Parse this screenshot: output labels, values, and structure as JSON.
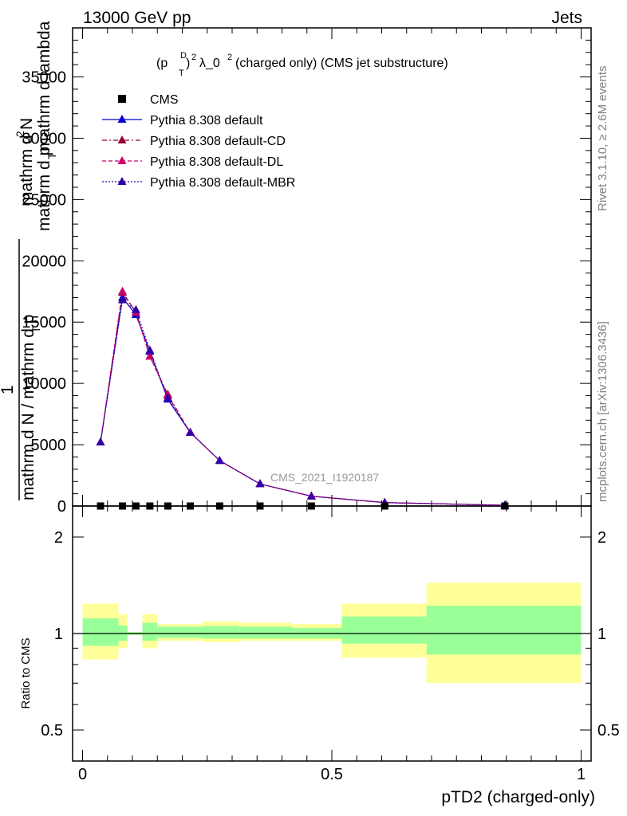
{
  "header": {
    "left": "13000 GeV pp",
    "right": "Jets",
    "plot_title": "(p",
    "plot_title_T": "T",
    "plot_title_D": "D",
    "plot_title_rest": ")",
    "plot_title_exp": "2",
    "plot_title_tail": " λ_0",
    "plot_title_exp2": "2",
    "plot_title_end": " (charged only) (CMS jet substructure)",
    "side_rivet": "Rivet 3.1.10, ≥ 2.6M events",
    "side_mcplots": "mcplots.cern.ch [arXiv:1306.3436]",
    "watermark": "CMS_2021_I1920187"
  },
  "ylabel_main": {
    "line1": "mathrm d",
    "line1_sup": "2",
    "line1_tail": "N",
    "line2": "mathrm d p",
    "line2_sub": "T",
    "line2_tail": " mathrm d lambda",
    "one": "1",
    "denom": "mathrm d N / mathrm d p",
    "denom_sub": "T"
  },
  "ylabel_ratio": "Ratio to CMS",
  "xlabel": "pTD2 (charged-only)",
  "legend": [
    {
      "label": "CMS",
      "color": "#000000",
      "marker": "square",
      "line": "none"
    },
    {
      "label": "Pythia 8.308 default",
      "color": "#0000cc",
      "marker": "triangle",
      "line": "solid"
    },
    {
      "label": "Pythia 8.308 default-CD",
      "color": "#990033",
      "marker": "triangle",
      "line": "dashdot"
    },
    {
      "label": "Pythia 8.308 default-DL",
      "color": "#cc0066",
      "marker": "triangle",
      "line": "dashed"
    },
    {
      "label": "Pythia 8.308 default-MBR",
      "color": "#3300aa",
      "marker": "triangle",
      "line": "dotted"
    }
  ],
  "chart_data": {
    "type": "line",
    "title": "(p_T^D)^2 λ_0^2 (charged only) (CMS jet substructure)",
    "xlabel": "pTD2 (charged-only)",
    "xlim": [
      -0.02,
      1.02
    ],
    "ylim": [
      0,
      39000
    ],
    "x_ticks": [
      "0",
      "0.5",
      "1"
    ],
    "y_ticks": [
      "0",
      "5000",
      "10000",
      "15000",
      "20000",
      "25000",
      "30000",
      "35000"
    ],
    "grid": false,
    "legend_position": "top-left",
    "data_bins": [
      {
        "x": 0.036,
        "lo": 0.0,
        "hi": 0.072
      },
      {
        "x": 0.08,
        "lo": 0.072,
        "hi": 0.09
      },
      {
        "x": 0.107,
        "lo": 0.09,
        "hi": 0.12
      },
      {
        "x": 0.135,
        "lo": 0.12,
        "hi": 0.15
      },
      {
        "x": 0.171,
        "lo": 0.15,
        "hi": 0.195
      },
      {
        "x": 0.216,
        "lo": 0.195,
        "hi": 0.24
      },
      {
        "x": 0.275,
        "lo": 0.24,
        "hi": 0.315
      },
      {
        "x": 0.356,
        "lo": 0.315,
        "hi": 0.42
      },
      {
        "x": 0.459,
        "lo": 0.42,
        "hi": 0.52
      },
      {
        "x": 0.606,
        "lo": 0.52,
        "hi": 0.69
      },
      {
        "x": 0.847,
        "lo": 0.69,
        "hi": 1.0
      }
    ],
    "cms_values": [
      0,
      0,
      0,
      0,
      0,
      0,
      0,
      0,
      0,
      0,
      0
    ],
    "series": [
      {
        "name": "Pythia 8.308 default",
        "values": [
          5200,
          17000,
          15600,
          12600,
          8700,
          6000,
          3700,
          1800,
          800,
          280,
          60
        ]
      },
      {
        "name": "Pythia 8.308 default-CD",
        "values": [
          5200,
          17400,
          15800,
          12200,
          9100,
          6000,
          3700,
          1800,
          800,
          280,
          60
        ]
      },
      {
        "name": "Pythia 8.308 default-DL",
        "values": [
          5200,
          17500,
          15800,
          12200,
          9000,
          6000,
          3700,
          1800,
          800,
          280,
          60
        ]
      },
      {
        "name": "Pythia 8.308 default-MBR",
        "values": [
          5200,
          16800,
          16000,
          12700,
          8800,
          6000,
          3700,
          1800,
          800,
          280,
          60
        ]
      }
    ],
    "ratio": {
      "ylabel": "Ratio to CMS",
      "log_scale": true,
      "ylim": [
        0.4,
        2.5
      ],
      "y_ticks": [
        "0.5",
        "1",
        "2"
      ],
      "band_inner": [
        [
          0.915,
          1.115
        ],
        [
          0.95,
          1.06
        ],
        [
          0.99,
          1.01
        ],
        [
          0.95,
          1.08
        ],
        [
          0.97,
          1.05
        ],
        [
          0.97,
          1.05
        ],
        [
          0.965,
          1.055
        ],
        [
          0.965,
          1.05
        ],
        [
          0.965,
          1.04
        ],
        [
          0.93,
          1.13
        ],
        [
          0.86,
          1.22
        ]
      ],
      "band_outer": [
        [
          0.83,
          1.24
        ],
        [
          0.9,
          1.15
        ],
        [
          0.99,
          1.01
        ],
        [
          0.9,
          1.15
        ],
        [
          0.95,
          1.07
        ],
        [
          0.95,
          1.07
        ],
        [
          0.94,
          1.09
        ],
        [
          0.95,
          1.08
        ],
        [
          0.95,
          1.07
        ],
        [
          0.84,
          1.24
        ],
        [
          0.7,
          1.44
        ]
      ]
    }
  }
}
